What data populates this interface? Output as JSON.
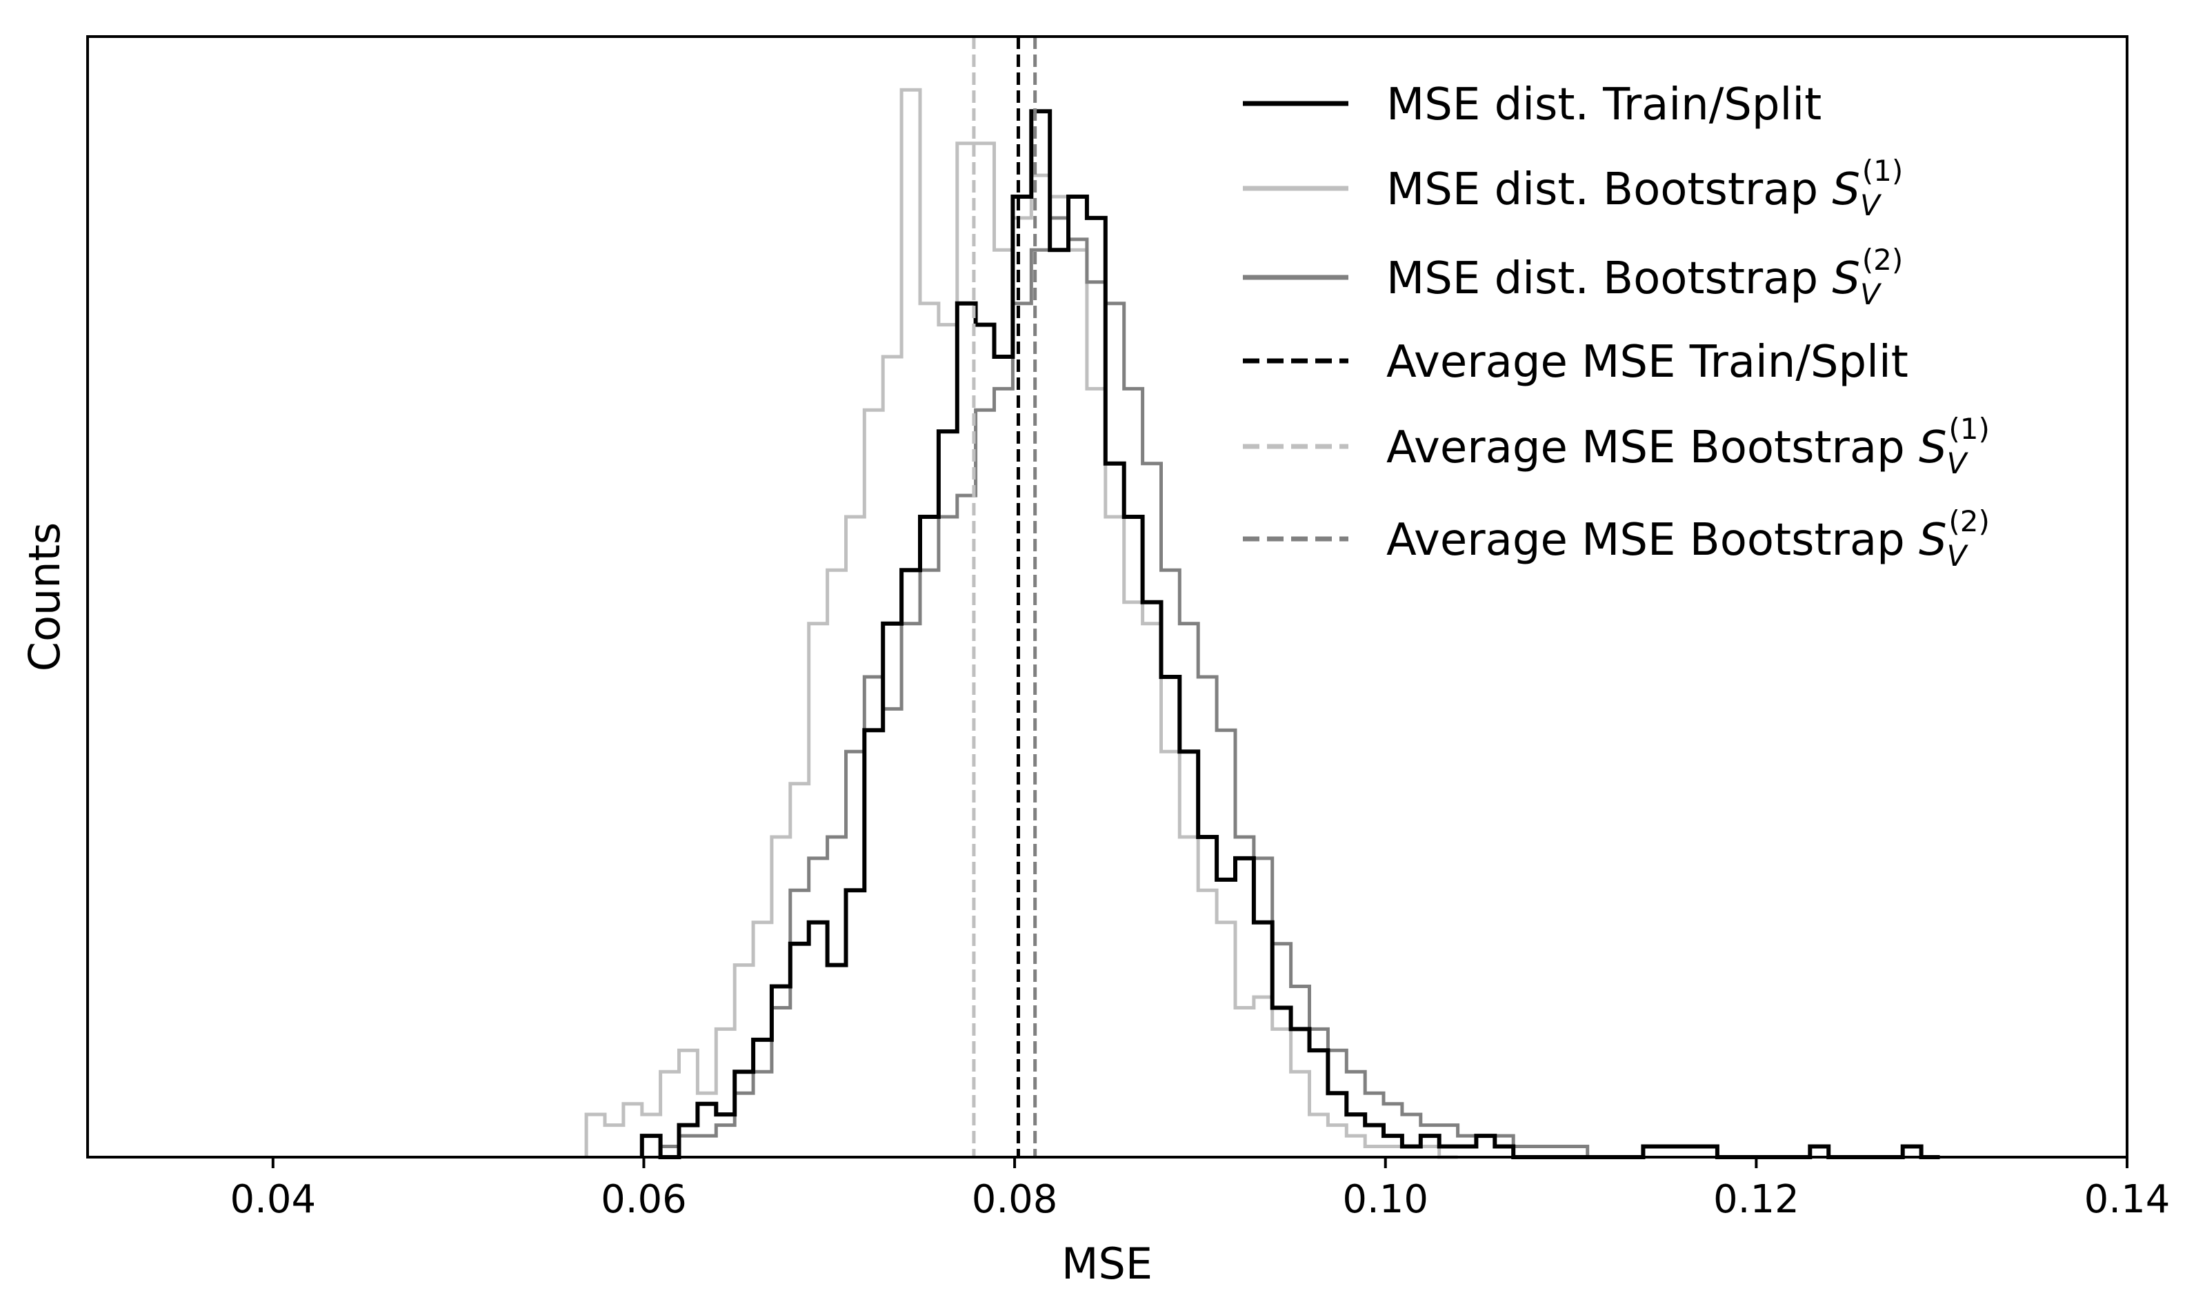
{
  "chart_data": {
    "type": "step histogram",
    "title": "",
    "xlabel": "MSE",
    "ylabel": "Counts",
    "xlim": [
      0.03,
      0.14
    ],
    "ylim": [
      0,
      105
    ],
    "y_tick_labels": false,
    "x_ticks": [
      {
        "value": 0.04,
        "label": "0.04"
      },
      {
        "value": 0.06,
        "label": "0.06"
      },
      {
        "value": 0.08,
        "label": "0.08"
      },
      {
        "value": 0.1,
        "label": "0.10"
      },
      {
        "value": 0.12,
        "label": "0.12"
      },
      {
        "value": 0.14,
        "label": "0.14"
      }
    ],
    "legend_location": "upper right",
    "series": [
      {
        "name": "MSE dist. Train/Split",
        "legend_main": "MSE dist. Train/Split",
        "legend_symbol": "",
        "legend_sup": "",
        "legend_sub": "",
        "style": "solid",
        "color": "#000000",
        "bins": [
          [
            0.0599,
            2
          ],
          [
            0.0609,
            0
          ],
          [
            0.0619,
            3
          ],
          [
            0.0629,
            5
          ],
          [
            0.0639,
            4
          ],
          [
            0.0649,
            8
          ],
          [
            0.0659,
            11
          ],
          [
            0.0669,
            16
          ],
          [
            0.0679,
            20
          ],
          [
            0.0689,
            22
          ],
          [
            0.0699,
            18
          ],
          [
            0.0709,
            25
          ],
          [
            0.0719,
            40
          ],
          [
            0.0729,
            50
          ],
          [
            0.0739,
            55
          ],
          [
            0.0749,
            60
          ],
          [
            0.0759,
            68
          ],
          [
            0.0769,
            80
          ],
          [
            0.0779,
            78
          ],
          [
            0.0789,
            75
          ],
          [
            0.0799,
            90
          ],
          [
            0.0809,
            98
          ],
          [
            0.0819,
            85
          ],
          [
            0.0829,
            90
          ],
          [
            0.0839,
            88
          ],
          [
            0.0849,
            65
          ],
          [
            0.0859,
            60
          ],
          [
            0.0869,
            52
          ],
          [
            0.0879,
            45
          ],
          [
            0.0889,
            38
          ],
          [
            0.0899,
            30
          ],
          [
            0.0909,
            26
          ],
          [
            0.0919,
            28
          ],
          [
            0.0929,
            22
          ],
          [
            0.0939,
            14
          ],
          [
            0.0949,
            12
          ],
          [
            0.0959,
            10
          ],
          [
            0.0969,
            6
          ],
          [
            0.0979,
            4
          ],
          [
            0.0989,
            3
          ],
          [
            0.0999,
            2
          ],
          [
            0.1009,
            1
          ],
          [
            0.1019,
            2
          ],
          [
            0.1029,
            1
          ],
          [
            0.1039,
            1
          ],
          [
            0.1049,
            2
          ],
          [
            0.1059,
            1
          ],
          [
            0.1069,
            0
          ],
          [
            0.1079,
            0
          ],
          [
            0.1089,
            0
          ],
          [
            0.1099,
            0
          ],
          [
            0.1109,
            0
          ],
          [
            0.1119,
            0
          ],
          [
            0.1129,
            0
          ],
          [
            0.1139,
            1
          ],
          [
            0.1149,
            1
          ],
          [
            0.1159,
            1
          ],
          [
            0.1169,
            1
          ],
          [
            0.1179,
            0
          ],
          [
            0.1189,
            0
          ],
          [
            0.1199,
            0
          ],
          [
            0.1209,
            0
          ],
          [
            0.1219,
            0
          ],
          [
            0.1229,
            1
          ],
          [
            0.1239,
            0
          ],
          [
            0.1249,
            0
          ],
          [
            0.1259,
            0
          ],
          [
            0.1269,
            0
          ],
          [
            0.1279,
            1
          ],
          [
            0.1289,
            0
          ]
        ]
      },
      {
        "name": "MSE dist. Bootstrap S_V^(1)",
        "legend_main": "MSE dist. Bootstrap ",
        "legend_symbol": "S",
        "legend_sup": "(1)",
        "legend_sub": "V",
        "style": "solid",
        "color": "#bfbfbf",
        "bins": [
          [
            0.0569,
            4
          ],
          [
            0.0579,
            3
          ],
          [
            0.0589,
            5
          ],
          [
            0.0599,
            4
          ],
          [
            0.0609,
            8
          ],
          [
            0.0619,
            10
          ],
          [
            0.0629,
            6
          ],
          [
            0.0639,
            12
          ],
          [
            0.0649,
            18
          ],
          [
            0.0659,
            22
          ],
          [
            0.0669,
            30
          ],
          [
            0.0679,
            35
          ],
          [
            0.0689,
            50
          ],
          [
            0.0699,
            55
          ],
          [
            0.0709,
            60
          ],
          [
            0.0719,
            70
          ],
          [
            0.0729,
            75
          ],
          [
            0.0739,
            100
          ],
          [
            0.0749,
            80
          ],
          [
            0.0759,
            78
          ],
          [
            0.0769,
            95
          ],
          [
            0.0779,
            95
          ],
          [
            0.0789,
            85
          ],
          [
            0.0799,
            88
          ],
          [
            0.0809,
            92
          ],
          [
            0.0819,
            90
          ],
          [
            0.0829,
            85
          ],
          [
            0.0839,
            72
          ],
          [
            0.0849,
            60
          ],
          [
            0.0859,
            52
          ],
          [
            0.0869,
            50
          ],
          [
            0.0879,
            38
          ],
          [
            0.0889,
            30
          ],
          [
            0.0899,
            25
          ],
          [
            0.0909,
            22
          ],
          [
            0.0919,
            14
          ],
          [
            0.0929,
            15
          ],
          [
            0.0939,
            12
          ],
          [
            0.0949,
            8
          ],
          [
            0.0959,
            4
          ],
          [
            0.0969,
            3
          ],
          [
            0.0979,
            2
          ],
          [
            0.0989,
            1
          ],
          [
            0.0999,
            1
          ],
          [
            0.1009,
            1
          ],
          [
            0.1019,
            1
          ],
          [
            0.1029,
            0
          ]
        ]
      },
      {
        "name": "MSE dist. Bootstrap S_V^(2)",
        "legend_main": "MSE dist. Bootstrap ",
        "legend_symbol": "S",
        "legend_sup": "(2)",
        "legend_sub": "V",
        "style": "solid",
        "color": "#808080",
        "bins": [
          [
            0.0609,
            1
          ],
          [
            0.0619,
            2
          ],
          [
            0.0629,
            2
          ],
          [
            0.0639,
            3
          ],
          [
            0.0649,
            6
          ],
          [
            0.0659,
            8
          ],
          [
            0.0669,
            14
          ],
          [
            0.0679,
            25
          ],
          [
            0.0689,
            28
          ],
          [
            0.0699,
            30
          ],
          [
            0.0709,
            38
          ],
          [
            0.0719,
            45
          ],
          [
            0.0729,
            42
          ],
          [
            0.0739,
            50
          ],
          [
            0.0749,
            55
          ],
          [
            0.0759,
            60
          ],
          [
            0.0769,
            62
          ],
          [
            0.0779,
            70
          ],
          [
            0.0789,
            72
          ],
          [
            0.0799,
            80
          ],
          [
            0.0809,
            85
          ],
          [
            0.0819,
            88
          ],
          [
            0.0829,
            86
          ],
          [
            0.0839,
            82
          ],
          [
            0.0849,
            80
          ],
          [
            0.0859,
            72
          ],
          [
            0.0869,
            65
          ],
          [
            0.0879,
            55
          ],
          [
            0.0889,
            50
          ],
          [
            0.0899,
            45
          ],
          [
            0.0909,
            40
          ],
          [
            0.0919,
            30
          ],
          [
            0.0929,
            28
          ],
          [
            0.0939,
            20
          ],
          [
            0.0949,
            16
          ],
          [
            0.0959,
            12
          ],
          [
            0.0969,
            10
          ],
          [
            0.0979,
            8
          ],
          [
            0.0989,
            6
          ],
          [
            0.0999,
            5
          ],
          [
            0.1009,
            4
          ],
          [
            0.1019,
            3
          ],
          [
            0.1029,
            3
          ],
          [
            0.1039,
            2
          ],
          [
            0.1049,
            2
          ],
          [
            0.1059,
            2
          ],
          [
            0.1069,
            1
          ],
          [
            0.1079,
            1
          ],
          [
            0.1089,
            1
          ],
          [
            0.1099,
            1
          ],
          [
            0.1109,
            0
          ]
        ]
      },
      {
        "name": "Average MSE Train/Split",
        "legend_main": "Average MSE Train/Split",
        "legend_symbol": "",
        "legend_sup": "",
        "legend_sub": "",
        "style": "dashed",
        "color": "#000000",
        "x": 0.0802
      },
      {
        "name": "Average MSE Bootstrap S_V^(1)",
        "legend_main": "Average MSE Bootstrap ",
        "legend_symbol": "S",
        "legend_sup": "(1)",
        "legend_sub": "V",
        "style": "dashed",
        "color": "#bfbfbf",
        "x": 0.0778
      },
      {
        "name": "Average MSE Bootstrap S_V^(2)",
        "legend_main": "Average MSE Bootstrap ",
        "legend_symbol": "S",
        "legend_sup": "(2)",
        "legend_sub": "V",
        "style": "dashed",
        "color": "#808080",
        "x": 0.0811
      }
    ]
  }
}
